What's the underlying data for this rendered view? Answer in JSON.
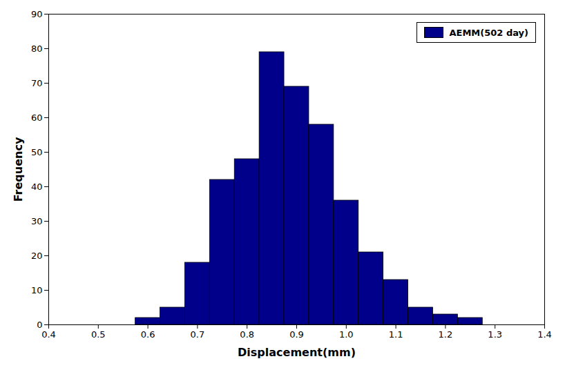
{
  "chart_data": {
    "type": "histogram",
    "xlabel": "Displacement(mm)",
    "ylabel": "Frequency",
    "bins": [
      0.575,
      0.625,
      0.675,
      0.725,
      0.775,
      0.825,
      0.875,
      0.925,
      0.975,
      1.025,
      1.075,
      1.125,
      1.175,
      1.225,
      1.275
    ],
    "series": [
      {
        "name": "AEMM(502 day)",
        "color": "#00008B",
        "values": [
          2,
          5,
          18,
          42,
          48,
          79,
          69,
          58,
          36,
          21,
          13,
          5,
          3,
          2
        ]
      }
    ],
    "xlim": [
      0.4,
      1.4
    ],
    "ylim": [
      0,
      90
    ],
    "xticks": [
      0.4,
      0.5,
      0.6,
      0.7,
      0.8,
      0.9,
      {
        "value": 1,
        "label": "1.0"
      },
      1.1,
      1.2,
      1.3,
      1.4
    ],
    "yticks": [
      0,
      10,
      20,
      30,
      40,
      50,
      60,
      70,
      80,
      90
    ],
    "grid": false,
    "legend": "upper right"
  }
}
